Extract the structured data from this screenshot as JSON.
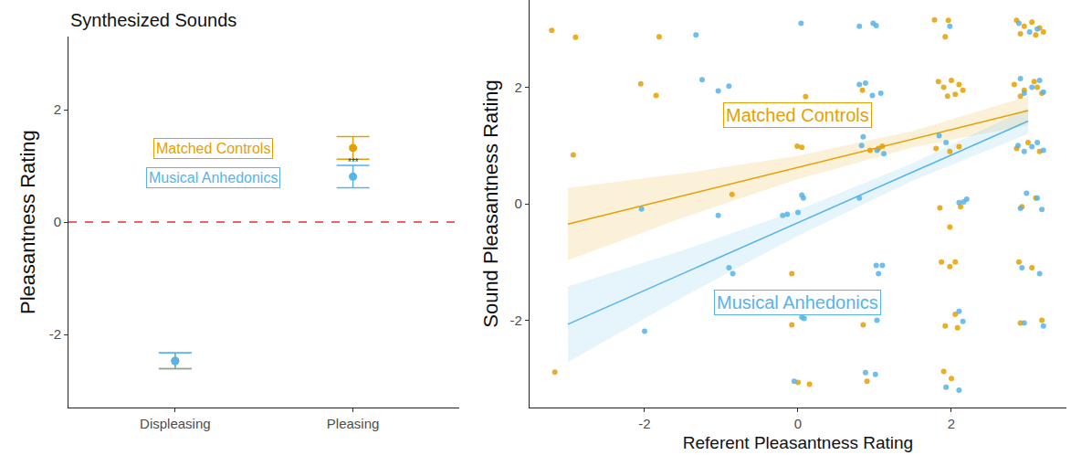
{
  "chart_data": [
    {
      "type": "dot_errorbar",
      "title": "Synthesized Sounds",
      "y_label": "Pleasantness Rating",
      "categories": [
        "Displeasing",
        "Pleasing"
      ],
      "ylim": [
        -3.3,
        3.3
      ],
      "yticks": [
        -2,
        0,
        2
      ],
      "grid": false,
      "reference_line": 0,
      "annotations": [
        {
          "text": "***",
          "x": "Pleasing",
          "y": 1.07
        }
      ],
      "series": [
        {
          "name": "Matched Controls",
          "color": "#E69F00",
          "values": [
            -2.47,
            1.32
          ],
          "error": [
            0.14,
            0.2
          ]
        },
        {
          "name": "Musical Anhedonics",
          "color": "#56B4E9",
          "values": [
            -2.47,
            0.81
          ],
          "error": [
            0.14,
            0.2
          ]
        }
      ]
    },
    {
      "type": "scatter",
      "x_label": "Referent Pleasantness Rating",
      "y_label": "Sound Pleasantness Rating",
      "xlim": [
        -3.5,
        3.5
      ],
      "ylim": [
        -3.5,
        3.5
      ],
      "xticks": [
        -2,
        0,
        2
      ],
      "yticks": [
        -2,
        0,
        2
      ],
      "grid": false,
      "series": [
        {
          "name": "Matched Controls",
          "color": "#E69F00",
          "x": [
            -3.21,
            -2.9,
            -1.81,
            -2.93,
            -3.17,
            -2.05,
            -1.85,
            -0.86,
            -0.01,
            0.05,
            0.1,
            -0.08,
            -0.08,
            0.0,
            0.15,
            0.84,
            0.94,
            1.05,
            1.1,
            0.85,
            0.9,
            1.78,
            1.96,
            1.92,
            1.83,
            1.9,
            2.0,
            2.1,
            2.15,
            1.95,
            2.05,
            1.8,
            1.98,
            2.1,
            1.85,
            1.98,
            2.12,
            1.87,
            1.98,
            2.05,
            1.92,
            2.08,
            2.05,
            2.0,
            1.9,
            2.85,
            2.95,
            3.05,
            3.15,
            3.2,
            2.9,
            3.1,
            2.82,
            2.95,
            3.08,
            3.18,
            2.9,
            3.12,
            2.85,
            3.0,
            3.15,
            2.92,
            3.1,
            2.88,
            3.05,
            2.9,
            3.18
          ],
          "y": [
            2.98,
            2.86,
            2.87,
            0.84,
            -2.89,
            2.06,
            1.86,
            0.16,
            0.99,
            0.97,
            1.84,
            -2.08,
            -1.2,
            -3.07,
            -3.1,
            1.95,
            0.92,
            0.95,
            0.99,
            -2.08,
            -3.05,
            3.16,
            3.15,
            2.87,
            2.1,
            2.0,
            2.12,
            2.05,
            1.95,
            1.85,
            1.88,
            0.95,
            0.9,
            0.98,
            -0.07,
            -0.4,
            -0.05,
            -1.0,
            -1.08,
            -1.0,
            -2.1,
            -2.13,
            -1.9,
            -3.0,
            -2.88,
            3.15,
            3.05,
            3.12,
            3.02,
            2.95,
            2.92,
            2.9,
            2.05,
            1.95,
            2.1,
            1.9,
            1.85,
            2.0,
            0.95,
            1.05,
            0.9,
            -0.05,
            0.1,
            -1.0,
            -1.1,
            -2.05,
            -2.0
          ],
          "fit": {
            "x": [
              -3,
              -1.5,
              0,
              1.5,
              3
            ],
            "values": [
              -0.35,
              0.14,
              0.625,
              1.11,
              1.6
            ],
            "lower": [
              -0.97,
              -0.24,
              0.425,
              0.97,
              1.35
            ],
            "upper": [
              0.27,
              0.52,
              0.825,
              1.25,
              1.85
            ]
          }
        },
        {
          "name": "Musical Anhedonics",
          "color": "#56B4E9",
          "x": [
            -2.0,
            -2.04,
            -1.33,
            -1.25,
            -1.04,
            -0.9,
            -1.04,
            -0.9,
            -0.85,
            0.04,
            0.05,
            0.07,
            -0.2,
            -0.14,
            0.0,
            0.05,
            0.08,
            -0.05,
            0.8,
            0.98,
            1.02,
            0.8,
            0.88,
            0.97,
            1.08,
            0.83,
            0.85,
            1.03,
            1.12,
            0.8,
            1.02,
            1.05,
            1.1,
            1.03,
            0.88,
            1.01,
            1.84,
            1.93,
            2.1,
            2.2,
            2.16,
            2.1,
            2.15,
            1.93,
            2.1,
            1.98,
            2.88,
            3.02,
            3.12,
            2.9,
            3.05,
            3.2,
            2.95,
            3.15,
            2.87,
            2.95,
            3.05,
            3.12,
            3.2,
            2.9,
            2.98,
            3.12,
            3.18,
            2.92,
            3.15,
            2.95,
            3.2
          ],
          "y": [
            -2.19,
            -0.09,
            2.9,
            2.13,
            1.94,
            2.02,
            -0.2,
            -1.1,
            -1.2,
            3.1,
            0.15,
            0.1,
            -0.2,
            -0.18,
            -0.15,
            -1.95,
            -1.97,
            -3.05,
            3.05,
            3.1,
            3.06,
            2.05,
            2.07,
            1.86,
            1.9,
            1.0,
            1.15,
            0.92,
            0.86,
            0.1,
            -1.06,
            -1.2,
            -1.06,
            -2.0,
            -2.9,
            -2.93,
            1.17,
            1.05,
            0.02,
            0.08,
            0.03,
            -1.85,
            -2.02,
            -3.15,
            -3.2,
            3.05,
            3.1,
            2.95,
            3.0,
            2.15,
            2.0,
            1.92,
            1.9,
            2.12,
            1.0,
            0.9,
            0.98,
            1.05,
            0.92,
            -0.08,
            0.18,
            0.1,
            -0.1,
            -1.1,
            -1.2,
            -2.05,
            -2.1
          ],
          "fit": {
            "x": [
              -3,
              -1.5,
              0,
              1.5,
              3
            ],
            "values": [
              -2.07,
              -1.2,
              -0.33,
              0.55,
              1.42
            ],
            "lower": [
              -2.72,
              -1.6,
              -0.55,
              0.4,
              1.2
            ],
            "upper": [
              -1.42,
              -0.8,
              -0.11,
              0.7,
              1.64
            ]
          }
        }
      ]
    }
  ]
}
